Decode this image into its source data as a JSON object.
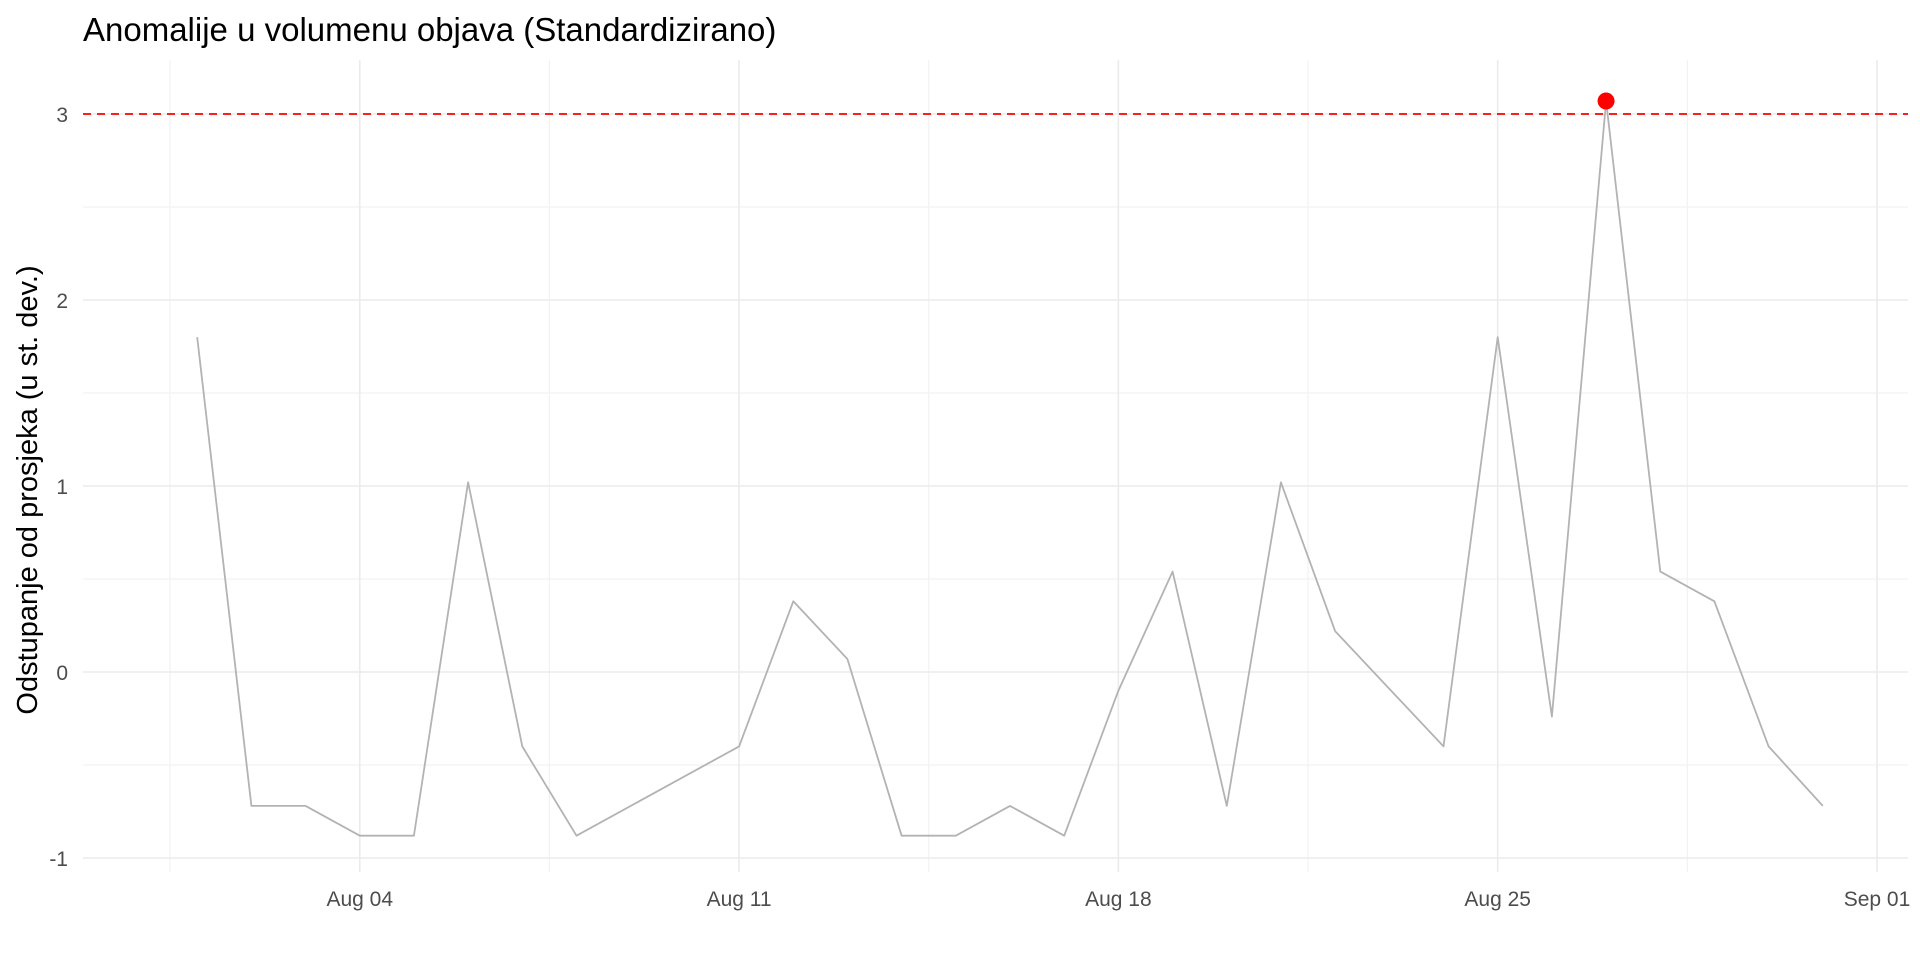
{
  "chart_data": {
    "type": "line",
    "title": "Anomalije u volumenu objava (Standardizirano)",
    "xlabel": "",
    "ylabel": "Odstupanje od prosjeka (u st. dev.)",
    "x_ticks": [
      {
        "date": "2025-08-04",
        "label": "Aug 04"
      },
      {
        "date": "2025-08-11",
        "label": "Aug 11"
      },
      {
        "date": "2025-08-18",
        "label": "Aug 18"
      },
      {
        "date": "2025-08-25",
        "label": "Aug 25"
      },
      {
        "date": "2025-09-01",
        "label": "Sep 01"
      }
    ],
    "y_ticks": [
      -1,
      0,
      1,
      2,
      3
    ],
    "xlim": [
      "2025-07-31",
      "2025-09-01"
    ],
    "ylim": [
      -1.05,
      3.3
    ],
    "grid": true,
    "threshold": {
      "value": 3,
      "color": "#ff0000",
      "style": "dashed"
    },
    "line_color": "#b3b3b3",
    "anomaly_color": "#ff0000",
    "series": [
      {
        "points": [
          {
            "x": "2025-08-01",
            "y": 1.8
          },
          {
            "x": "2025-08-02",
            "y": -0.72
          },
          {
            "x": "2025-08-03",
            "y": -0.72
          },
          {
            "x": "2025-08-04",
            "y": -0.88
          },
          {
            "x": "2025-08-05",
            "y": -0.88
          },
          {
            "x": "2025-08-06",
            "y": 1.02
          },
          {
            "x": "2025-08-07",
            "y": -0.4
          },
          {
            "x": "2025-08-08",
            "y": -0.88
          },
          {
            "x": "2025-08-11",
            "y": -0.4
          },
          {
            "x": "2025-08-12",
            "y": 0.38
          },
          {
            "x": "2025-08-13",
            "y": 0.07
          },
          {
            "x": "2025-08-14",
            "y": -0.88
          },
          {
            "x": "2025-08-15",
            "y": -0.88
          },
          {
            "x": "2025-08-16",
            "y": -0.72
          },
          {
            "x": "2025-08-17",
            "y": -0.88
          },
          {
            "x": "2025-08-18",
            "y": -0.1
          },
          {
            "x": "2025-08-19",
            "y": 0.54
          },
          {
            "x": "2025-08-20",
            "y": -0.72
          },
          {
            "x": "2025-08-21",
            "y": 1.02
          },
          {
            "x": "2025-08-22",
            "y": 0.22
          },
          {
            "x": "2025-08-24",
            "y": -0.4
          },
          {
            "x": "2025-08-25",
            "y": 1.8
          },
          {
            "x": "2025-08-26",
            "y": -0.24
          },
          {
            "x": "2025-08-27",
            "y": 3.07
          },
          {
            "x": "2025-08-28",
            "y": 0.54
          },
          {
            "x": "2025-08-29",
            "y": 0.38
          },
          {
            "x": "2025-08-30",
            "y": -0.4
          },
          {
            "x": "2025-08-31",
            "y": -0.72
          }
        ]
      }
    ],
    "anomalies": [
      {
        "x": "2025-08-27",
        "y": 3.07
      }
    ]
  }
}
